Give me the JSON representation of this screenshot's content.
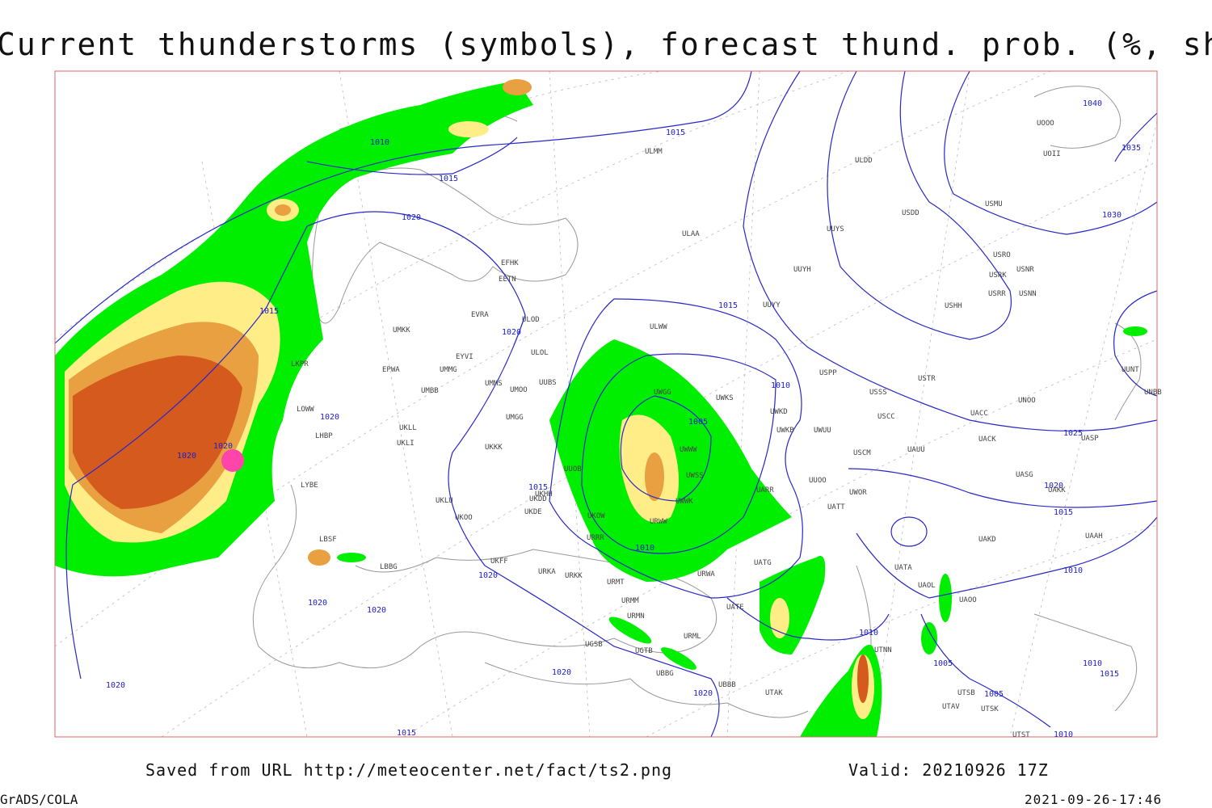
{
  "header": {
    "title": "Current thunderstorms (symbols), forecast thund. prob. (%, shaded)"
  },
  "isobar_labels": [
    "1010",
    "1015",
    "1015",
    "1020",
    "1015",
    "1020",
    "1020",
    "1020",
    "1020",
    "1015",
    "1010",
    "1005",
    "1010",
    "1015",
    "1020",
    "1020",
    "1020",
    "1020",
    "1020",
    "1020",
    "1015",
    "1010",
    "1005",
    "1005",
    "1010",
    "1010",
    "1015",
    "1020",
    "1025",
    "1030",
    "1035",
    "1040",
    "1010",
    "1015"
  ],
  "stations": [
    "ULMM",
    "ULDD",
    "UOOO",
    "UOII",
    "USMU",
    "USDD",
    "UUYS",
    "ULAA",
    "EFHK",
    "EETN",
    "USRO",
    "USRK",
    "USNR",
    "USRR",
    "USNN",
    "UUYH",
    "UUYY",
    "USHH",
    "EVRA",
    "ULOD",
    "UMKK",
    "ULWW",
    "EYVI",
    "ULOL",
    "EPWA",
    "UMMG",
    "USPP",
    "USTR",
    "UUNT",
    "UNBB",
    "UMMS",
    "UMOO",
    "UUBS",
    "UWGG",
    "UWKS",
    "USSS",
    "UNOO",
    "UMBB",
    "UWKD",
    "USCC",
    "UACC",
    "UMGG",
    "UKLL",
    "UWKB",
    "UWUU",
    "UACK",
    "UKLI",
    "UASP",
    "UKKK",
    "USCM",
    "UAUU",
    "UUOB",
    "UASG",
    "UUOO",
    "UWOR",
    "UAKK",
    "UKHH",
    "LOWW",
    "LKPR",
    "LHBP",
    "LYBE",
    "LBSF",
    "UKLU",
    "UKOO",
    "UKDE",
    "UKDD",
    "UKFF",
    "URKA",
    "URKK",
    "URMT",
    "URWA",
    "UATG",
    "URMM",
    "UATT",
    "UAKD",
    "UAAH",
    "UATA",
    "UAOL",
    "UAOO",
    "URMN",
    "UATE",
    "URML",
    "UGSB",
    "UGTB",
    "UBBB",
    "UBBG",
    "UTAK",
    "UTNN",
    "UTSB",
    "UTAV",
    "UTSK",
    "UTST",
    "URRR",
    "UKOW",
    "UWWW",
    "UWSS",
    "UWWK",
    "URWW",
    "UARR",
    "LBBG"
  ],
  "footer": {
    "source": "Saved from URL http://meteocenter.net/fact/ts2.png",
    "valid": "Valid: 20210926 17Z",
    "software": "GrADS/COLA",
    "timestamp": "2021-09-26-17:46"
  }
}
